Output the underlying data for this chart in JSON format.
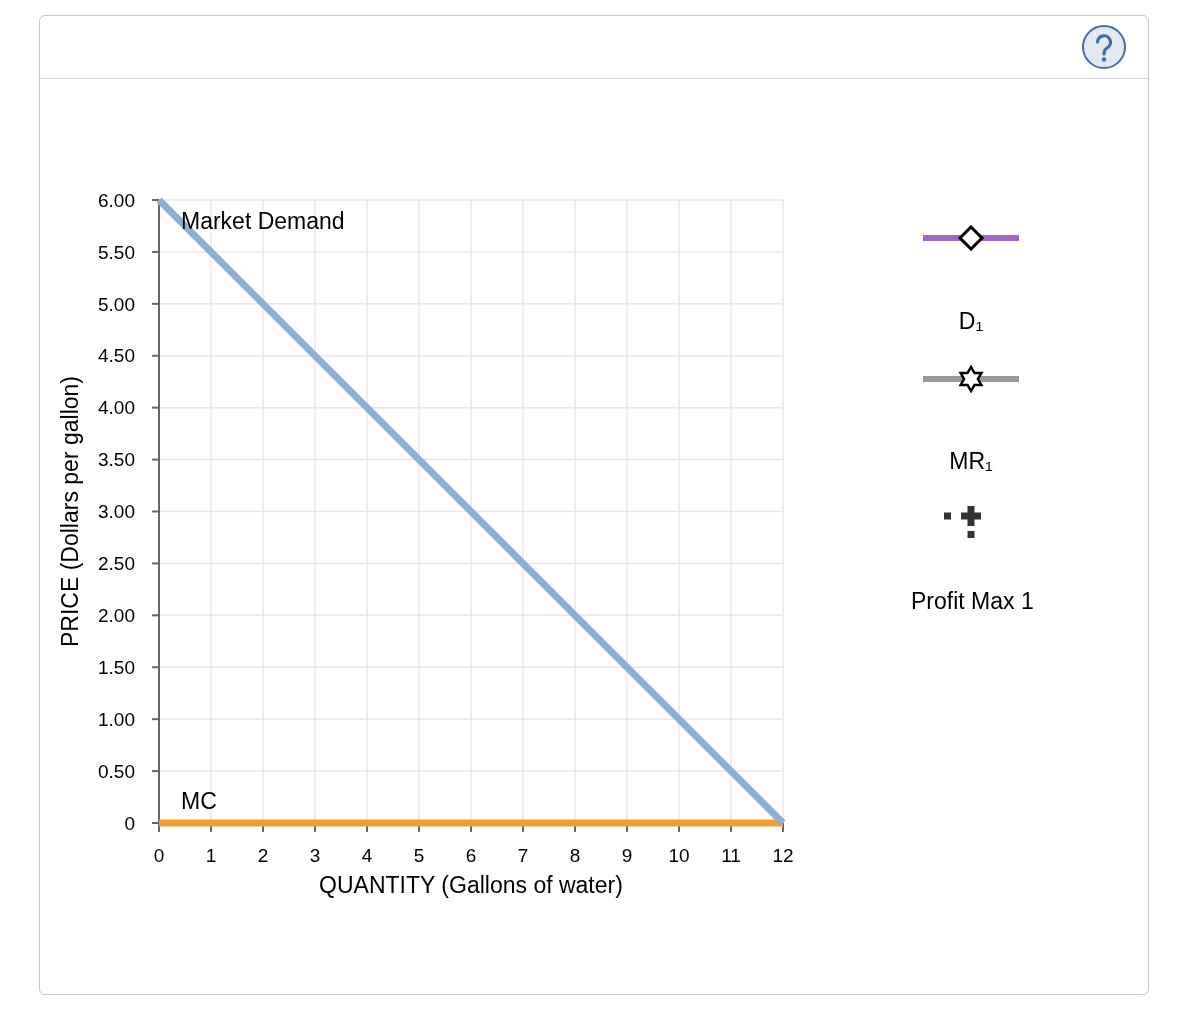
{
  "chart_data": {
    "type": "line",
    "x": [
      0,
      12
    ],
    "xlim": [
      0,
      12
    ],
    "xticks": [
      0,
      1,
      2,
      3,
      4,
      5,
      6,
      7,
      8,
      9,
      10,
      11,
      12
    ],
    "ylim": [
      0,
      6
    ],
    "yticks": [
      0,
      {
        "value": 0.5,
        "label": "0.50"
      },
      {
        "value": 1,
        "label": "1.00"
      },
      {
        "value": 1.5,
        "label": "1.50"
      },
      {
        "value": 2,
        "label": "2.00"
      },
      {
        "value": 2.5,
        "label": "2.50"
      },
      {
        "value": 3,
        "label": "3.00"
      },
      {
        "value": 3.5,
        "label": "3.50"
      },
      {
        "value": 4,
        "label": "4.00"
      },
      {
        "value": 4.5,
        "label": "4.50"
      },
      {
        "value": 5,
        "label": "5.00"
      },
      {
        "value": 5.5,
        "label": "5.50"
      },
      {
        "value": 6,
        "label": "6.00"
      }
    ],
    "xlabel": "QUANTITY (Gallons of water)",
    "ylabel": "PRICE (Dollars per gallon)",
    "series": [
      {
        "name": "Market Demand",
        "color": "#8eaed3",
        "values": [
          6,
          0
        ]
      },
      {
        "name": "MC",
        "color": "#f0a033",
        "values": [
          0,
          0
        ]
      }
    ],
    "annotations": [
      "D₁",
      "MR₁",
      "Profit Max 1"
    ],
    "grid": true
  }
}
